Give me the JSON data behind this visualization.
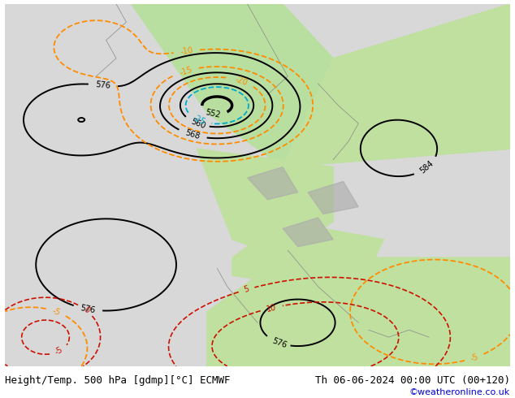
{
  "title_left": "Height/Temp. 500 hPa [gdmp][°C] ECMWF",
  "title_right": "Th 06-06-2024 00:00 UTC (00+120)",
  "credit": "©weatheronline.co.uk",
  "title_fontsize": 9,
  "credit_fontsize": 8,
  "credit_color": "#0000cc"
}
